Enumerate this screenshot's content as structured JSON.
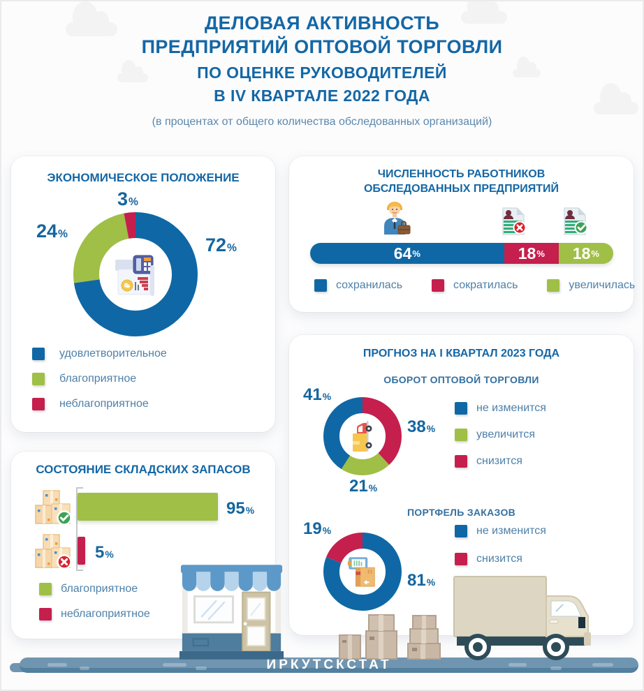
{
  "percent_sign": "%",
  "colors": {
    "primary_blue": "#0f68a5",
    "green": "#a0bf47",
    "red": "#c51f4e",
    "title_blue": "#1467a5",
    "muted_blue": "#35709f",
    "legend_text": "#4d80a9",
    "road_blue": "#7095b0",
    "road_shadow": "#52809f"
  },
  "header": {
    "title_line1": "ДЕЛОВАЯ АКТИВНОСТЬ",
    "title_line2": "ПРЕДПРИЯТИЙ ОПТОВОЙ ТОРГОВЛИ",
    "title_line3": "ПО ОЦЕНКЕ РУКОВОДИТЕЛЕЙ",
    "title_line4": "В IV КВАРТАЛЕ 2022 ГОДА",
    "subtitle": "(в процентах от общего количества обследованных организаций)"
  },
  "forecast_section_title": "ПРОГНОЗ НА I КВАРТАЛ 2023 ГОДА",
  "footer": {
    "brand": "ИРКУТСКСТАТ"
  },
  "icons": {
    "economic_center": "finance-report-calculator-icon",
    "workforce_row": [
      "worker-briefcase-icon",
      "resume-rejected-icon",
      "resume-accepted-icon"
    ],
    "turnover_center": "delivery-truck-icon",
    "portfolio_center": "package-clipboard-icon",
    "warehouse_rows": [
      "boxes-approved-icon",
      "boxes-rejected-icon"
    ],
    "decorations": [
      "cloud-decoration",
      "storefront-illustration",
      "cardboard-boxes-illustration",
      "truck-illustration",
      "road-illustration"
    ]
  },
  "chart_data": [
    {
      "id": "economic_position",
      "type": "pie",
      "variant": "donut",
      "title": "ЭКОНОМИЧЕСКОЕ ПОЛОЖЕНИЕ",
      "unit": "%",
      "segments": [
        {
          "label": "удовлетворительное",
          "value": 72,
          "color": "#0f68a5"
        },
        {
          "label": "благоприятное",
          "value": 24,
          "color": "#a0bf47"
        },
        {
          "label": "неблагоприятное",
          "value": 3,
          "color": "#c51f4e"
        }
      ],
      "draw_order": [
        0,
        1,
        2
      ],
      "legend_position": "bottom-left"
    },
    {
      "id": "workforce_change",
      "type": "bar",
      "variant": "stacked-horizontal-100",
      "title_line1": "ЧИСЛЕННОСТЬ РАБОТНИКОВ",
      "title_line2": "ОБСЛЕДОВАННЫХ ПРЕДПРИЯТИЙ",
      "unit": "%",
      "segments": [
        {
          "label": "сохранилась",
          "value": 64,
          "color": "#0f68a5"
        },
        {
          "label": "сократилась",
          "value": 18,
          "color": "#c51f4e"
        },
        {
          "label": "увеличилась",
          "value": 18,
          "color": "#a0bf47"
        }
      ],
      "legend_position": "bottom"
    },
    {
      "id": "forecast_turnover",
      "type": "pie",
      "variant": "donut",
      "title": "ОБОРОТ ОПТОВОЙ ТОРГОВЛИ",
      "unit": "%",
      "segments": [
        {
          "label": "не изменится",
          "value": 41,
          "color": "#0f68a5"
        },
        {
          "label": "увеличится",
          "value": 21,
          "color": "#a0bf47"
        },
        {
          "label": "снизится",
          "value": 38,
          "color": "#c51f4e"
        }
      ],
      "draw_order": [
        2,
        1,
        0
      ],
      "legend_position": "right"
    },
    {
      "id": "forecast_order_portfolio",
      "type": "pie",
      "variant": "donut",
      "title": "ПОРТФЕЛЬ ЗАКАЗОВ",
      "unit": "%",
      "segments": [
        {
          "label": "не изменится",
          "value": 81,
          "color": "#0f68a5"
        },
        {
          "label": "снизится",
          "value": 19,
          "color": "#c51f4e"
        }
      ],
      "draw_order": [
        0,
        1
      ],
      "legend_position": "right"
    },
    {
      "id": "warehouse_stocks",
      "type": "bar",
      "variant": "horizontal",
      "title": "СОСТОЯНИЕ СКЛАДСКИХ ЗАПАСОВ",
      "unit": "%",
      "xlim": [
        0,
        100
      ],
      "bars": [
        {
          "label": "благоприятное",
          "value": 95,
          "color": "#a0bf47"
        },
        {
          "label": "неблагоприятное",
          "value": 5,
          "color": "#c51f4e"
        }
      ],
      "legend_position": "bottom-left"
    }
  ]
}
